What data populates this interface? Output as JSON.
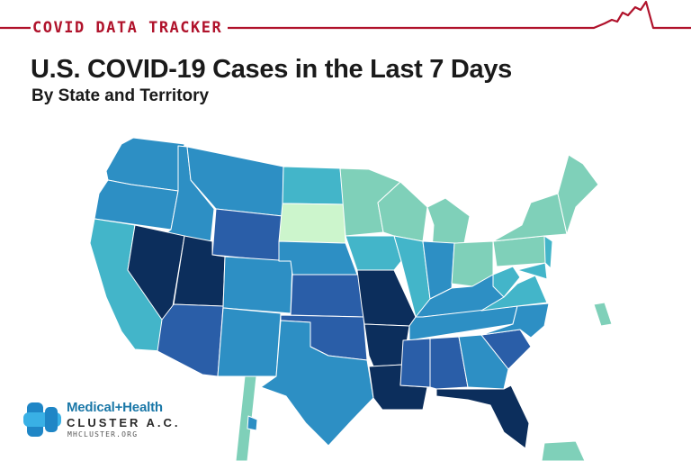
{
  "header": {
    "label": "COVID DATA TRACKER",
    "title": "U.S. COVID-19 Cases in the Last 7 Days",
    "subtitle": "By State and Territory"
  },
  "colors": {
    "brand_red": "#b0122b",
    "level_lowest": "#ccf5cc",
    "level_low": "#7fd0b9",
    "level_mid_low": "#43b5c9",
    "level_mid": "#2d8fc4",
    "level_mid_high": "#2a5ea8",
    "level_high": "#0c2e5c"
  },
  "regions": [
    {
      "name": "WA",
      "level": "mid"
    },
    {
      "name": "OR",
      "level": "mid"
    },
    {
      "name": "CA",
      "level": "mid_low"
    },
    {
      "name": "ID",
      "level": "mid"
    },
    {
      "name": "MT",
      "level": "mid"
    },
    {
      "name": "WY",
      "level": "mid_high"
    },
    {
      "name": "NV",
      "level": "high"
    },
    {
      "name": "UT",
      "level": "high"
    },
    {
      "name": "AZ",
      "level": "mid_high"
    },
    {
      "name": "CO",
      "level": "mid"
    },
    {
      "name": "NM",
      "level": "mid"
    },
    {
      "name": "ND",
      "level": "mid_low"
    },
    {
      "name": "SD",
      "level": "lowest"
    },
    {
      "name": "NE",
      "level": "mid"
    },
    {
      "name": "KS",
      "level": "mid_high"
    },
    {
      "name": "OK",
      "level": "mid_high"
    },
    {
      "name": "TX",
      "level": "mid"
    },
    {
      "name": "MN",
      "level": "low"
    },
    {
      "name": "IA",
      "level": "mid_low"
    },
    {
      "name": "MO",
      "level": "high"
    },
    {
      "name": "AR",
      "level": "high"
    },
    {
      "name": "LA",
      "level": "high"
    },
    {
      "name": "WI",
      "level": "low"
    },
    {
      "name": "IL",
      "level": "mid_low"
    },
    {
      "name": "MI",
      "level": "low"
    },
    {
      "name": "IN",
      "level": "mid"
    },
    {
      "name": "OH",
      "level": "low"
    },
    {
      "name": "KY",
      "level": "mid"
    },
    {
      "name": "TN",
      "level": "mid"
    },
    {
      "name": "MS",
      "level": "mid_high"
    },
    {
      "name": "AL",
      "level": "mid_high"
    },
    {
      "name": "GA",
      "level": "mid"
    },
    {
      "name": "FL",
      "level": "high"
    },
    {
      "name": "SC",
      "level": "mid_high"
    },
    {
      "name": "NC",
      "level": "mid"
    },
    {
      "name": "VA",
      "level": "mid_low"
    },
    {
      "name": "WV",
      "level": "mid_low"
    },
    {
      "name": "PA",
      "level": "low"
    },
    {
      "name": "NY",
      "level": "low"
    },
    {
      "name": "ME",
      "level": "low"
    },
    {
      "name": "NJ",
      "level": "mid_low"
    },
    {
      "name": "MD",
      "level": "mid_low"
    },
    {
      "name": "AK",
      "level": "low"
    },
    {
      "name": "HI",
      "level": "mid"
    },
    {
      "name": "PR",
      "level": "low"
    },
    {
      "name": "NC-Outer-Banks",
      "level": "low"
    }
  ],
  "logo": {
    "line1": "Medical+Health",
    "line2": "CLUSTER A.C.",
    "line3": "MHCLUSTER.ORG"
  }
}
